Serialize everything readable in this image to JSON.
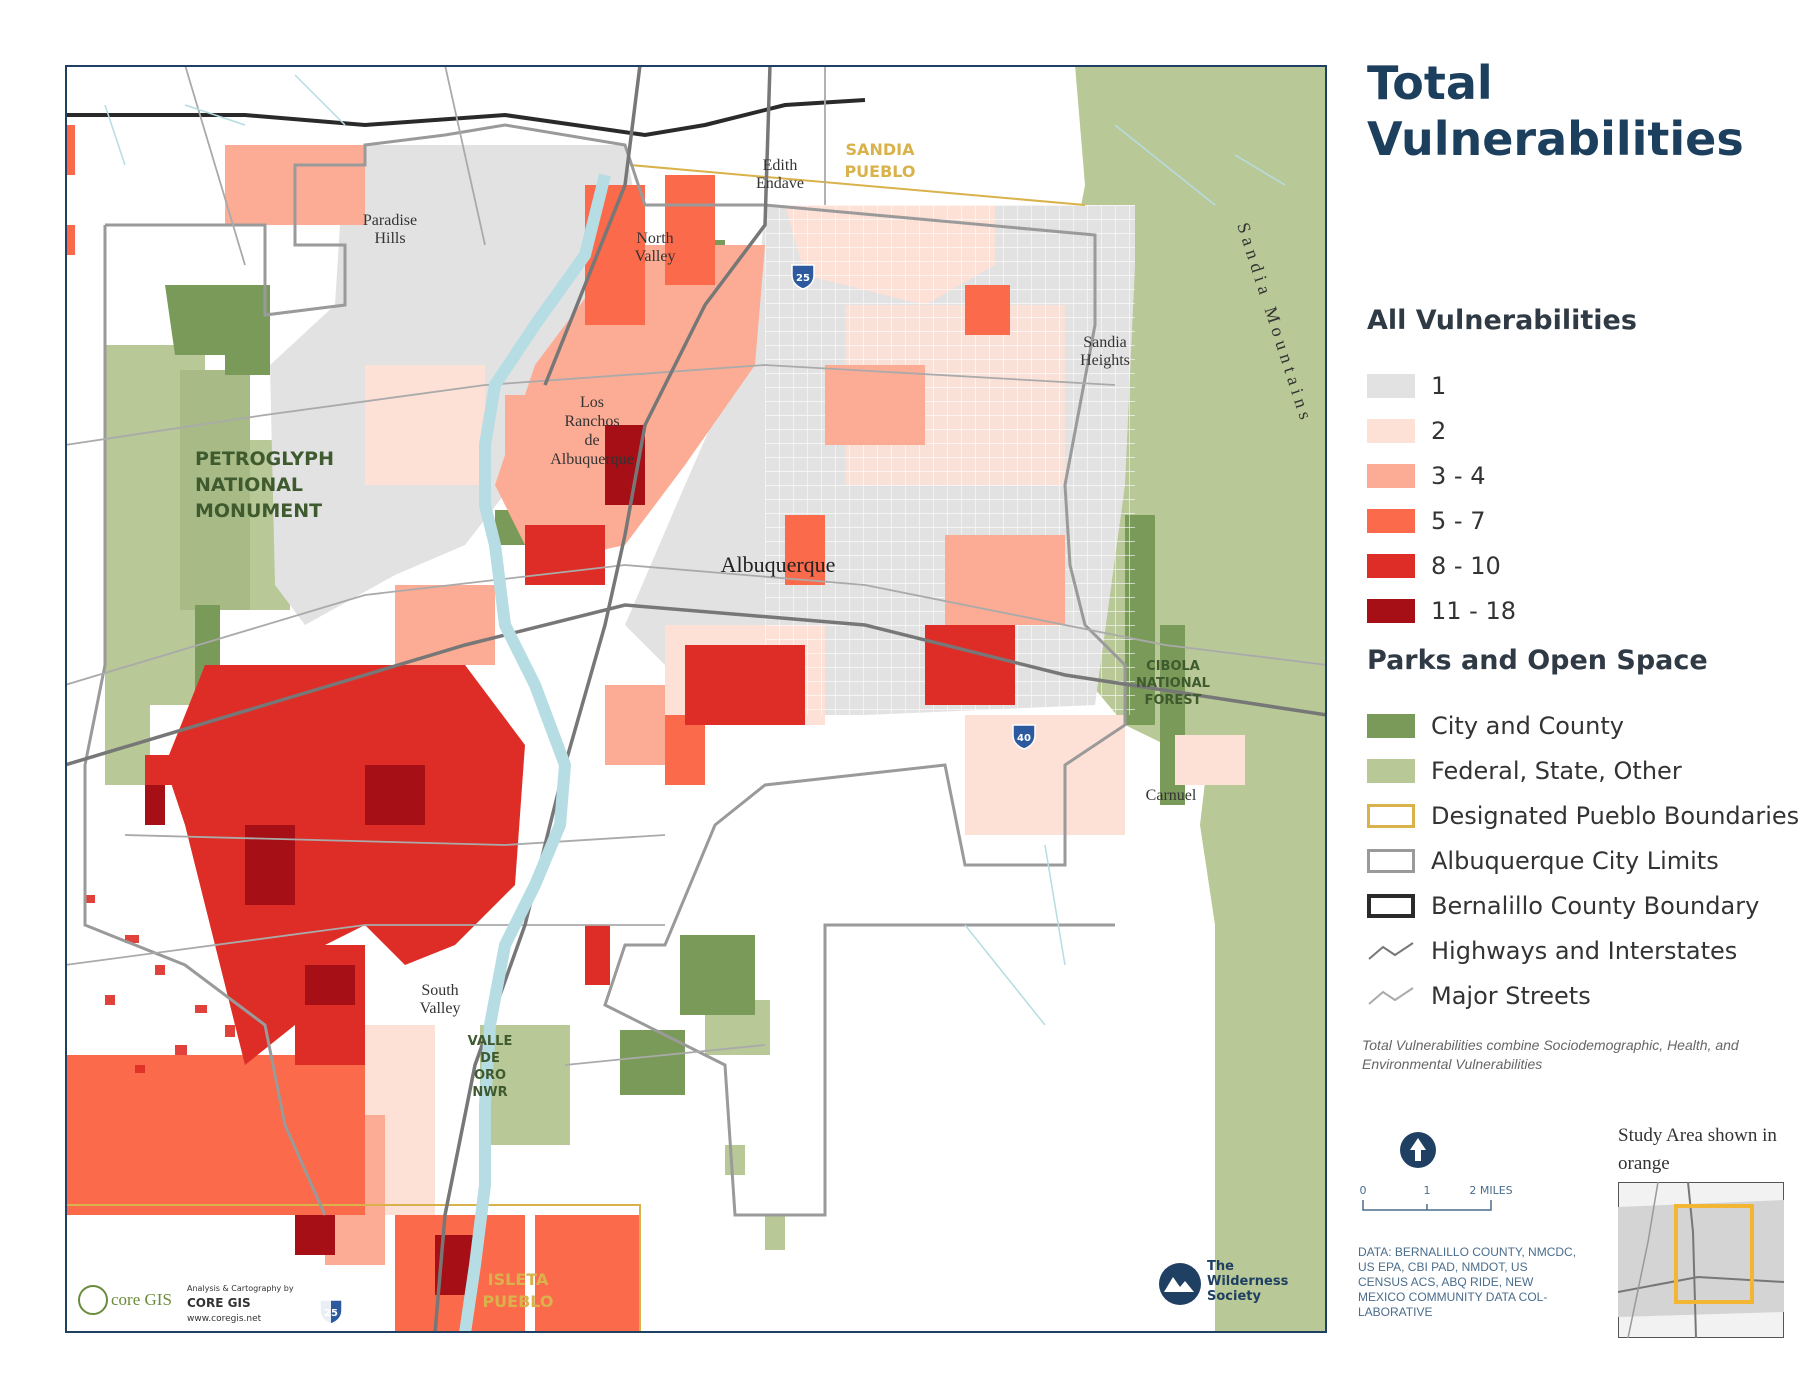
{
  "title": "Total Vulnerabilities",
  "colors": {
    "v1": "#e2e2e2",
    "v2": "#fde0d6",
    "v34": "#fcac94",
    "v57": "#fb6a4a",
    "v810": "#de2d26",
    "v1118": "#a50f15",
    "city_county_park": "#7a9a5a",
    "federal_park": "#b8c897",
    "pueblo_boundary": "#d9b24c",
    "water": "#b6dce4"
  },
  "legend": {
    "vulnerabilities": {
      "title": "All Vulnerabilities",
      "items": [
        {
          "label": "1",
          "color": "#e2e2e2"
        },
        {
          "label": "2",
          "color": "#fde0d6"
        },
        {
          "label": "3 - 4",
          "color": "#fcac94"
        },
        {
          "label": "5 - 7",
          "color": "#fb6a4a"
        },
        {
          "label": "8 - 10",
          "color": "#de2d26"
        },
        {
          "label": "11 - 18",
          "color": "#a50f15"
        }
      ]
    },
    "parks": {
      "title": "Parks and Open Space",
      "items": [
        {
          "label": "City and County",
          "type": "fill",
          "color": "#7a9a5a"
        },
        {
          "label": "Federal, State, Other",
          "type": "fill",
          "color": "#b8c897"
        },
        {
          "label": "Designated Pueblo Boundaries",
          "type": "outline",
          "color": "#d9b24c"
        },
        {
          "label": "Albuquerque City Limits",
          "type": "outline",
          "color": "#9a9a9a"
        },
        {
          "label": "Bernalillo County Boundary",
          "type": "outline-heavy",
          "color": "#2a2a2a"
        },
        {
          "label": "Highways and Interstates",
          "type": "line",
          "color": "#777777"
        },
        {
          "label": "Major Streets",
          "type": "line",
          "color": "#aaaaaa"
        }
      ]
    }
  },
  "note": "Total Vulnerabilities combine Sociodemographic, Health, and Environmental Vulnerabilities",
  "scale": {
    "ticks": [
      "0",
      "1",
      "2 MILES"
    ]
  },
  "data_source": "DATA: BERNALILLO COUNTY, NMCDC, US EPA, CBI PAD, NMDOT, US CENSUS ACS, ABQ RIDE, NEW MEXICO COMMUNITY DATA COL-LABORATIVE",
  "inset": {
    "title": "Study Area shown in orange"
  },
  "credits": {
    "core_logo": "core GIS",
    "core_tagline": "Analysis & Cartography by",
    "core_name": "CORE GIS",
    "core_url": "www.coregis.net",
    "wilderness_line1": "The",
    "wilderness_line2": "Wilderness",
    "wilderness_line3": "Society"
  },
  "map_labels": {
    "sandia_pueblo": "SANDIA PUEBLO",
    "edith_endave": "Edith Endave",
    "paradise_hills": "Paradise Hills",
    "north_valley": "North Valley",
    "los_ranchos": "Los Ranchos de Albuquerque",
    "sandia_heights": "Sandia Heights",
    "sandia_mountains": "Sandia Mountains",
    "petroglyph": "PETROGLYPH NATIONAL MONUMENT",
    "albuquerque": "Albuquerque",
    "cibola": "CIBOLA NATIONAL FOREST",
    "carnuel": "Carnuel",
    "south_valley": "South Valley",
    "valle_de_oro": "VALLE DE ORO NWR",
    "isleta_pueblo": "ISLETA PUEBLO",
    "i25_north": "25",
    "i25_south": "25",
    "i40": "40"
  }
}
